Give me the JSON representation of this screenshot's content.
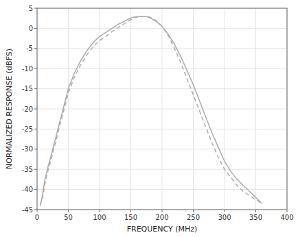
{
  "chart_data": {
    "type": "line",
    "xlabel": "FREQUENCY (MHz)",
    "ylabel": "NORMALIZED RESPONSE (dBFS)",
    "xlim": [
      0,
      400
    ],
    "ylim": [
      -45,
      5
    ],
    "xticks": [
      0,
      50,
      100,
      150,
      200,
      250,
      300,
      350,
      400
    ],
    "yticks": [
      5,
      0,
      -5,
      -10,
      -15,
      -20,
      -25,
      -30,
      -35,
      -40,
      -45
    ],
    "grid": true,
    "series": [
      {
        "color": "#aaaaaa",
        "line_style": "solid",
        "x": [
          5,
          8,
          10,
          12,
          15,
          18,
          20,
          25,
          30,
          35,
          40,
          45,
          50,
          60,
          70,
          80,
          90,
          100,
          110,
          120,
          130,
          140,
          150,
          155,
          160,
          165,
          170,
          175,
          180,
          190,
          200,
          210,
          220,
          230,
          240,
          250,
          260,
          270,
          280,
          290,
          300,
          310,
          320,
          330,
          340,
          350,
          360
        ],
        "values": [
          -44,
          -42,
          -40,
          -38,
          -36,
          -34,
          -33,
          -30,
          -27,
          -24,
          -21,
          -18,
          -15,
          -11,
          -8,
          -5.5,
          -3.5,
          -2,
          -1,
          0,
          1,
          1.8,
          2.6,
          2.8,
          2.9,
          3.0,
          3.0,
          2.9,
          2.7,
          1.8,
          0.5,
          -1.5,
          -4,
          -7,
          -10.5,
          -14,
          -18,
          -22,
          -26,
          -29.5,
          -33,
          -35.5,
          -37.5,
          -39,
          -40.5,
          -42,
          -43.5
        ]
      },
      {
        "color": "#aaaaaa",
        "line_style": "dashed",
        "x": [
          5,
          8,
          10,
          12,
          15,
          18,
          20,
          25,
          30,
          35,
          40,
          45,
          50,
          60,
          70,
          80,
          90,
          100,
          110,
          120,
          130,
          140,
          150,
          155,
          160,
          165,
          170,
          175,
          180,
          190,
          200,
          210,
          220,
          230,
          240,
          250,
          260,
          270,
          280,
          290,
          300,
          310,
          320,
          330,
          340,
          350,
          360
        ],
        "values": [
          -44,
          -42.5,
          -41,
          -39,
          -37,
          -35,
          -34,
          -31,
          -28,
          -25,
          -22,
          -19,
          -16,
          -12,
          -9,
          -6.5,
          -4.5,
          -3,
          -2,
          -0.8,
          0.2,
          1.2,
          2.2,
          2.5,
          2.8,
          2.9,
          3.0,
          3.0,
          2.8,
          2.0,
          0.5,
          -1.8,
          -5,
          -8.5,
          -12.5,
          -16.5,
          -20.5,
          -24.5,
          -28.5,
          -32,
          -35,
          -37,
          -39,
          -40.5,
          -41.5,
          -42.5,
          -43.5
        ]
      }
    ]
  }
}
